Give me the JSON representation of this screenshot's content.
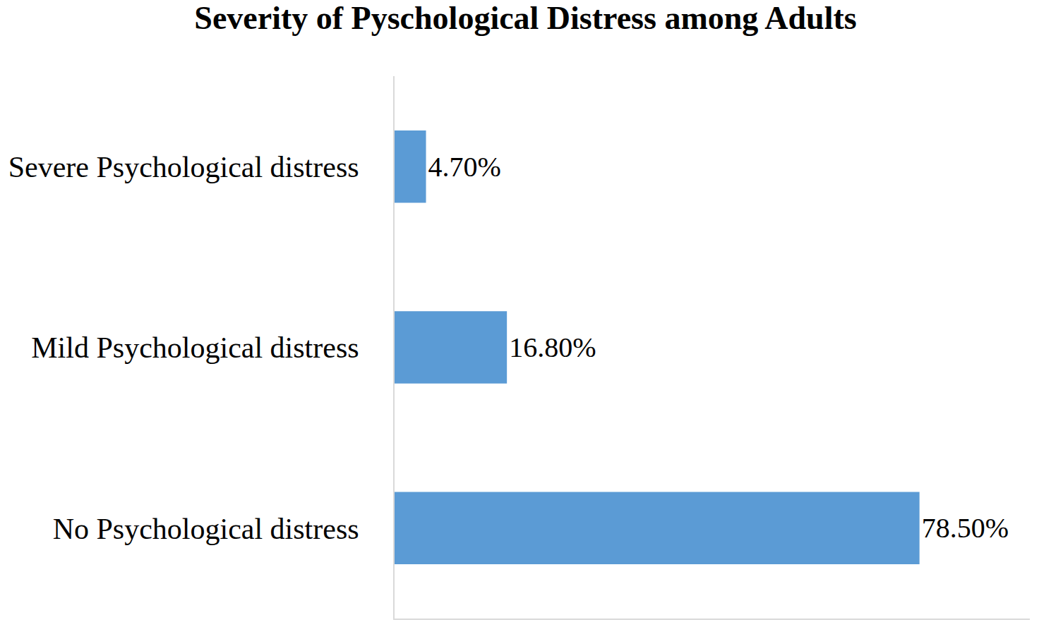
{
  "chart_data": {
    "type": "bar",
    "orientation": "horizontal",
    "title": "Severity of Pyschological Distress among Adults",
    "categories": [
      "Severe Psychological distress",
      "Mild Psychological distress",
      "No Psychological distress"
    ],
    "values": [
      4.7,
      16.8,
      78.5
    ],
    "value_labels": [
      "4.70%",
      "16.80%",
      "78.50%"
    ],
    "color": "#5b9bd5",
    "xlim": [
      0,
      95
    ],
    "grid": false,
    "data_labels": true,
    "tick_labels": "y"
  }
}
